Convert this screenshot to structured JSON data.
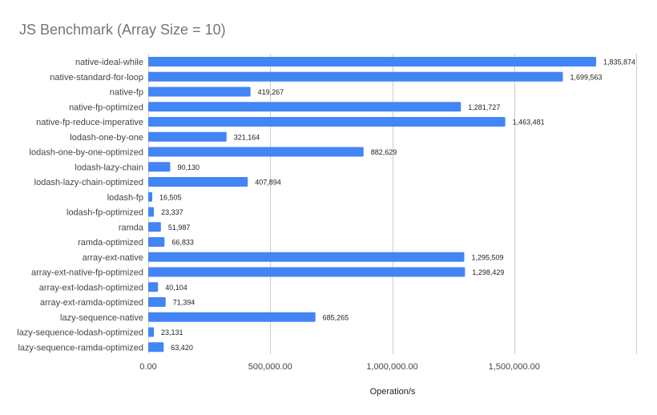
{
  "chart_data": {
    "type": "bar",
    "orientation": "horizontal",
    "title": "JS Benchmark (Array Size = 10)",
    "xlabel": "Operation/s",
    "ylabel": "",
    "xlim": [
      0,
      2000000
    ],
    "grid": true,
    "bar_color": "#4285F4",
    "categories": [
      "native-ideal-while",
      "native-standard-for-loop",
      "native-fp",
      "native-fp-optimized",
      "native-fp-reduce-imperative",
      "lodash-one-by-one",
      "lodash-one-by-one-optimized",
      "lodash-lazy-chain",
      "lodash-lazy-chain-optimized",
      "lodash-fp",
      "lodash-fp-optimized",
      "ramda",
      "ramda-optimized",
      "array-ext-native",
      "array-ext-native-fp-optimized",
      "array-ext-lodash-optimized",
      "array-ext-ramda-optimized",
      "lazy-sequence-native",
      "lazy-sequence-lodash-optimized",
      "lazy-sequence-ramda-optimized"
    ],
    "values": [
      1835874,
      1699563,
      419267,
      1281727,
      1463481,
      321164,
      882629,
      90130,
      407894,
      16505,
      23337,
      51987,
      66833,
      1295509,
      1298429,
      40104,
      71394,
      685265,
      23131,
      63420
    ],
    "value_labels": [
      "1,835,874",
      "1,699,563",
      "419,267",
      "1,281,727",
      "1,463,481",
      "321,164",
      "882,629",
      "90,130",
      "407,894",
      "16,505",
      "23,337",
      "51,987",
      "66,833",
      "1,295,509",
      "1,298,429",
      "40,104",
      "71,394",
      "685,265",
      "23,131",
      "63,420"
    ],
    "x_ticks": [
      0,
      500000,
      1000000,
      1500000
    ],
    "x_tick_labels": [
      "0.00",
      "500,000.00",
      "1,000,000.00",
      "1,500,000.00"
    ]
  }
}
